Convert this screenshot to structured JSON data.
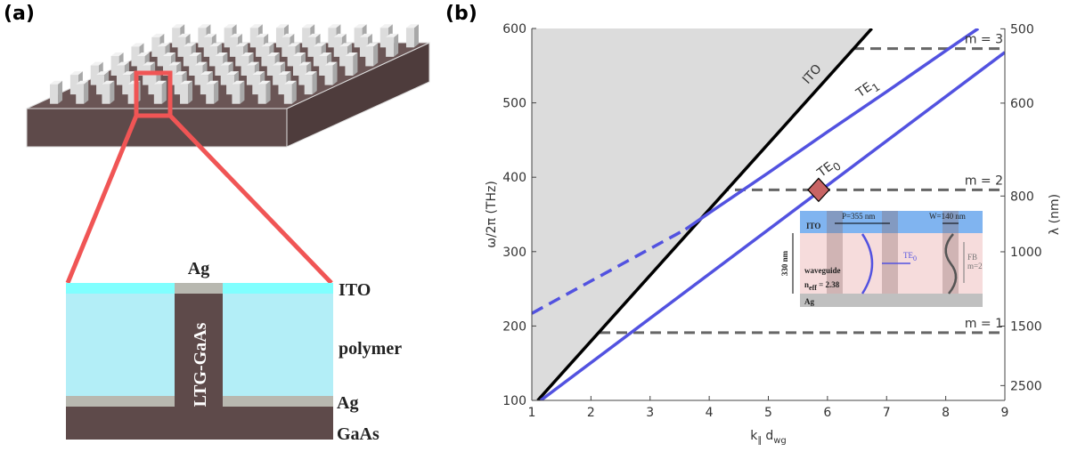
{
  "panel_a": {
    "letter": "(a)",
    "cap_label": "Ag",
    "pillar_label": "LTG-GaAs",
    "layers": [
      "ITO",
      "polymer",
      "Ag",
      "GaAs"
    ]
  },
  "chart_data": {
    "type": "line",
    "letter": "(b)",
    "xlabel": [
      "k",
      "∥",
      "d",
      "wg"
    ],
    "ylabel": "ω/2π (THz)",
    "y2label": "λ (nm)",
    "xlim": [
      1,
      9
    ],
    "ylim": [
      100,
      600
    ],
    "xticks": [
      1,
      2,
      3,
      4,
      5,
      6,
      7,
      8,
      9
    ],
    "yticks": [
      100,
      200,
      300,
      400,
      500,
      600
    ],
    "y2lim": [
      2997.9,
      499.65
    ],
    "y2scale": "reciprocal",
    "y2ticks": [
      500,
      600,
      800,
      1000,
      1500,
      2500
    ],
    "series": [
      {
        "x": [
          1.1,
          6.75
        ],
        "values": [
          100,
          600
        ],
        "color": "#000000",
        "fill_left": "#dcdcdc",
        "label": "ITO"
      },
      {
        "x": [
          1,
          3.6
        ],
        "values": [
          217,
          330
        ],
        "color": "#5252e0",
        "dashed": true
      },
      {
        "x": [
          3.6,
          4,
          5,
          6,
          7,
          8,
          8.55
        ],
        "values": [
          330,
          352,
          406,
          461,
          515,
          570,
          600
        ],
        "color": "#5252e0",
        "label": "TE",
        "label_sub": "1"
      },
      {
        "x": [
          1.15,
          9
        ],
        "values": [
          100,
          568
        ],
        "color": "#5252e0",
        "label": "TE",
        "label_sub": "0"
      }
    ],
    "hlines": [
      {
        "value": 573,
        "label": "m = 3"
      },
      {
        "value": 383,
        "label": "m = 2"
      },
      {
        "value": 191,
        "label": "m = 1"
      }
    ],
    "hline_color": "#666666",
    "marker": {
      "x": 5.85,
      "y": 383,
      "color": "#c86464"
    },
    "inset": {
      "ito": "ITO",
      "period": "P=355 nm",
      "width": "W=140 nm",
      "thickness": "330 nm",
      "waveguide": "waveguide",
      "neff": [
        "n",
        "eff",
        " = 2.38"
      ],
      "ag": "Ag",
      "te": [
        "TE",
        "0"
      ],
      "fb": "FB",
      "fb_mode": "m=2"
    }
  }
}
